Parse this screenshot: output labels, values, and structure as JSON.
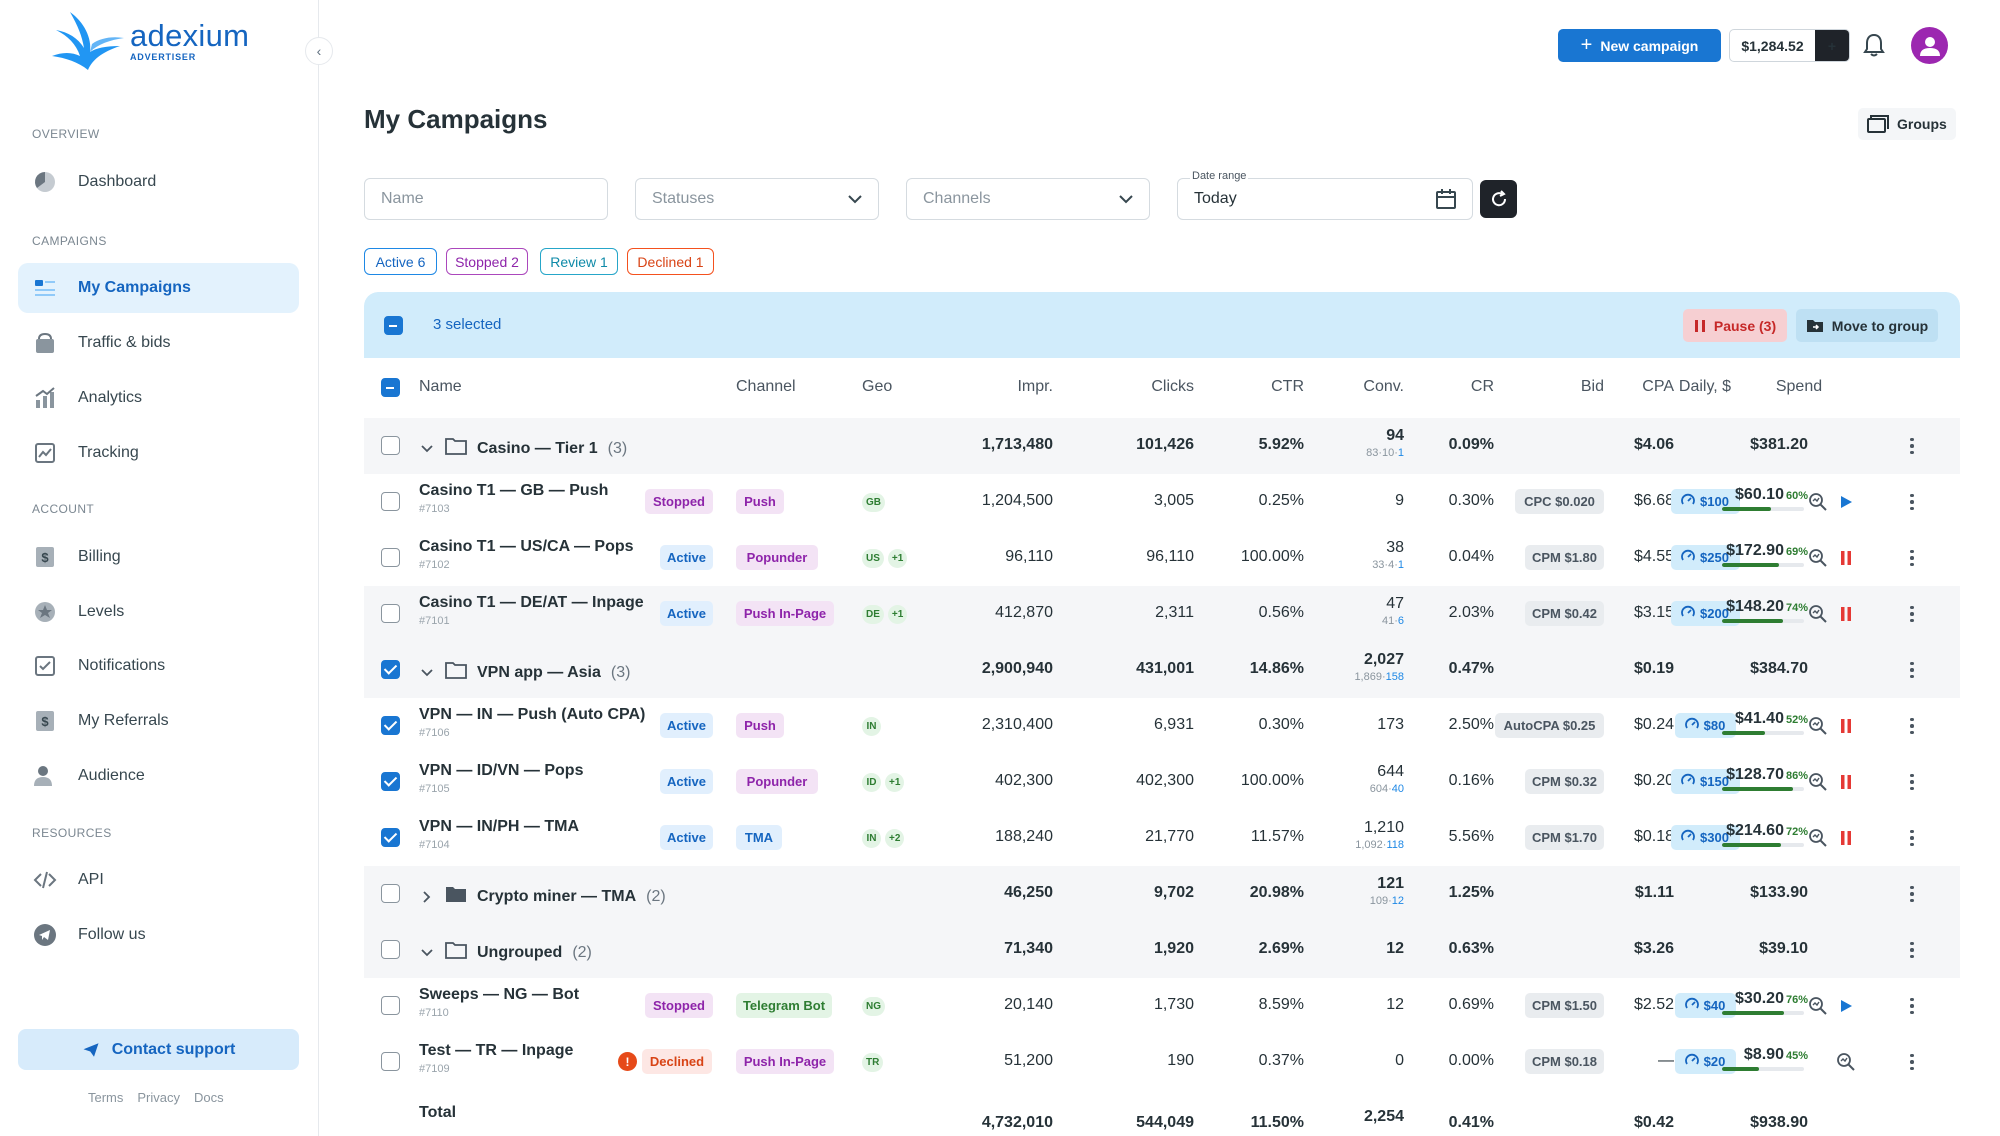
{
  "brand": {
    "name": "adexium",
    "sub": "ADVERTISER"
  },
  "sidebar": {
    "sections": {
      "overview": "OVERVIEW",
      "campaigns": "CAMPAIGNS",
      "account": "ACCOUNT",
      "resources": "RESOURCES"
    },
    "items": [
      {
        "label": "Dashboard",
        "icon": "dashboard-icon"
      },
      {
        "label": "My Campaigns",
        "icon": "campaigns-icon",
        "active": true
      },
      {
        "label": "Traffic & bids",
        "icon": "traffic-icon"
      },
      {
        "label": "Analytics",
        "icon": "analytics-icon"
      },
      {
        "label": "Tracking",
        "icon": "tracking-icon"
      },
      {
        "label": "Billing",
        "icon": "billing-icon"
      },
      {
        "label": "Levels",
        "icon": "levels-icon"
      },
      {
        "label": "Notifications",
        "icon": "notifications-icon"
      },
      {
        "label": "My Referrals",
        "icon": "referrals-icon"
      },
      {
        "label": "Audience",
        "icon": "audience-icon"
      },
      {
        "label": "API",
        "icon": "api-icon"
      },
      {
        "label": "Follow us",
        "icon": "telegram-icon"
      }
    ],
    "support": "Contact support",
    "footer": [
      "Terms",
      "Privacy",
      "Docs"
    ]
  },
  "topbar": {
    "new_campaign": "New campaign",
    "balance": "$1,284.52"
  },
  "page": {
    "title": "My Campaigns",
    "groups": "Groups"
  },
  "filters": {
    "name_placeholder": "Name",
    "statuses_placeholder": "Statuses",
    "channels_placeholder": "Channels",
    "date_label": "Date range",
    "date_value": "Today"
  },
  "chips": {
    "active": "Active 6",
    "stopped": "Stopped 2",
    "review": "Review 1",
    "declined": "Declined 1"
  },
  "selection": {
    "text": "3 selected",
    "pause": "Pause (3)",
    "move": "Move to group"
  },
  "columns": {
    "name": "Name",
    "channel": "Channel",
    "geo": "Geo",
    "impr": "Impr.",
    "clicks": "Clicks",
    "ctr": "CTR",
    "conv": "Conv.",
    "cr": "CR",
    "bid": "Bid",
    "cpa": "CPA",
    "daily": "Daily, $",
    "spend": "Spend"
  },
  "rows": [
    {
      "kind": "group",
      "name": "Casino — Tier 1",
      "count": "(3)",
      "impr": "1,713,480",
      "clicks": "101,426",
      "ctr": "5.92%",
      "conv": "94",
      "conv_sub_a": "83·10·",
      "conv_sub_b": "1",
      "cr": "0.09%",
      "cpa": "$4.06",
      "spend": "$381.20"
    },
    {
      "kind": "item",
      "name": "Casino T1 — GB — Push",
      "id": "#7103",
      "status": "Stopped",
      "channel": "Push",
      "geo": [
        "GB"
      ],
      "impr": "1,204,500",
      "clicks": "3,005",
      "ctr": "0.25%",
      "conv": "9",
      "cr": "0.30%",
      "bid": "CPC $0.020",
      "cpa": "$6.68",
      "daily": "$100",
      "spend": "$60.10",
      "spend_pct": "60%",
      "pct": 60,
      "action": "play"
    },
    {
      "kind": "item",
      "name": "Casino T1 — US/CA — Pops",
      "id": "#7102",
      "status": "Active",
      "channel": "Popunder",
      "geo": [
        "US",
        "+1"
      ],
      "impr": "96,110",
      "clicks": "96,110",
      "ctr": "100.00%",
      "conv": "38",
      "conv_sub_a": "33·4·",
      "conv_sub_b": "1",
      "cr": "0.04%",
      "bid": "CPM $1.80",
      "cpa": "$4.55",
      "daily": "$250",
      "spend": "$172.90",
      "spend_pct": "69%",
      "pct": 69,
      "action": "pause"
    },
    {
      "kind": "item",
      "name": "Casino T1 — DE/AT — Inpage",
      "id": "#7101",
      "status": "Active",
      "channel": "Push In-Page",
      "geo": [
        "DE",
        "+1"
      ],
      "impr": "412,870",
      "clicks": "2,311",
      "ctr": "0.56%",
      "conv": "47",
      "conv_sub_a": "41·",
      "conv_sub_b": "6",
      "cr": "2.03%",
      "bid": "CPM $0.42",
      "cpa": "$3.15",
      "daily": "$200",
      "spend": "$148.20",
      "spend_pct": "74%",
      "pct": 74,
      "action": "pause"
    },
    {
      "kind": "group",
      "name": "VPN app — Asia",
      "count": "(3)",
      "checked": true,
      "impr": "2,900,940",
      "clicks": "431,001",
      "ctr": "14.86%",
      "conv": "2,027",
      "conv_sub_a": "1,869·",
      "conv_sub_b": "158",
      "cr": "0.47%",
      "cpa": "$0.19",
      "spend": "$384.70"
    },
    {
      "kind": "item",
      "name": "VPN — IN — Push (Auto CPA)",
      "id": "#7106",
      "checked": true,
      "status": "Active",
      "channel": "Push",
      "geo": [
        "IN"
      ],
      "impr": "2,310,400",
      "clicks": "6,931",
      "ctr": "0.30%",
      "conv": "173",
      "cr": "2.50%",
      "bid": "AutoCPA $0.25",
      "cpa": "$0.24",
      "daily": "$80",
      "spend": "$41.40",
      "spend_pct": "52%",
      "pct": 52,
      "action": "pause"
    },
    {
      "kind": "item",
      "name": "VPN — ID/VN — Pops",
      "id": "#7105",
      "checked": true,
      "status": "Active",
      "channel": "Popunder",
      "geo": [
        "ID",
        "+1"
      ],
      "impr": "402,300",
      "clicks": "402,300",
      "ctr": "100.00%",
      "conv": "644",
      "conv_sub_a": "604·",
      "conv_sub_b": "40",
      "cr": "0.16%",
      "bid": "CPM $0.32",
      "cpa": "$0.20",
      "daily": "$150",
      "spend": "$128.70",
      "spend_pct": "86%",
      "pct": 86,
      "action": "pause"
    },
    {
      "kind": "item",
      "name": "VPN — IN/PH — TMA",
      "id": "#7104",
      "checked": true,
      "status": "Active",
      "channel": "TMA",
      "geo": [
        "IN",
        "+2"
      ],
      "impr": "188,240",
      "clicks": "21,770",
      "ctr": "11.57%",
      "conv": "1,210",
      "conv_sub_a": "1,092·",
      "conv_sub_b": "118",
      "cr": "5.56%",
      "bid": "CPM $1.70",
      "cpa": "$0.18",
      "daily": "$300",
      "spend": "$214.60",
      "spend_pct": "72%",
      "pct": 72,
      "action": "pause"
    },
    {
      "kind": "group",
      "name": "Crypto miner — TMA",
      "count": "(2)",
      "collapsed": true,
      "impr": "46,250",
      "clicks": "9,702",
      "ctr": "20.98%",
      "conv": "121",
      "conv_sub_a": "109·",
      "conv_sub_b": "12",
      "cr": "1.25%",
      "cpa": "$1.11",
      "spend": "$133.90"
    },
    {
      "kind": "group",
      "name": "Ungrouped",
      "count": "(2)",
      "impr": "71,340",
      "clicks": "1,920",
      "ctr": "2.69%",
      "conv": "12",
      "cr": "0.63%",
      "cpa": "$3.26",
      "spend": "$39.10"
    },
    {
      "kind": "item",
      "name": "Sweeps — NG — Bot",
      "id": "#7110",
      "status": "Stopped",
      "channel": "Telegram Bot",
      "geo": [
        "NG"
      ],
      "impr": "20,140",
      "clicks": "1,730",
      "ctr": "8.59%",
      "conv": "12",
      "cr": "0.69%",
      "bid": "CPM $1.50",
      "cpa": "$2.52",
      "daily": "$40",
      "spend": "$30.20",
      "spend_pct": "76%",
      "pct": 76,
      "action": "play"
    },
    {
      "kind": "item",
      "name": "Test — TR — Inpage",
      "id": "#7109",
      "status": "Declined",
      "warn": true,
      "channel": "Push In-Page",
      "geo": [
        "TR"
      ],
      "impr": "51,200",
      "clicks": "190",
      "ctr": "0.37%",
      "conv": "0",
      "cr": "0.00%",
      "bid": "CPM $0.18",
      "cpa": "—",
      "daily": "$20",
      "spend": "$8.90",
      "spend_pct": "45%",
      "pct": 45,
      "action": "none"
    }
  ],
  "total": {
    "label": "Total",
    "impr": "4,732,010",
    "clicks": "544,049",
    "ctr": "11.50%",
    "conv": "2,254",
    "cr": "0.41%",
    "cpa": "$0.42",
    "spend": "$938.90"
  },
  "colors": {
    "accent": "#1976d2",
    "active_bg": "#e3f2fd",
    "danger": "#c62828",
    "success": "#2e7d32"
  }
}
